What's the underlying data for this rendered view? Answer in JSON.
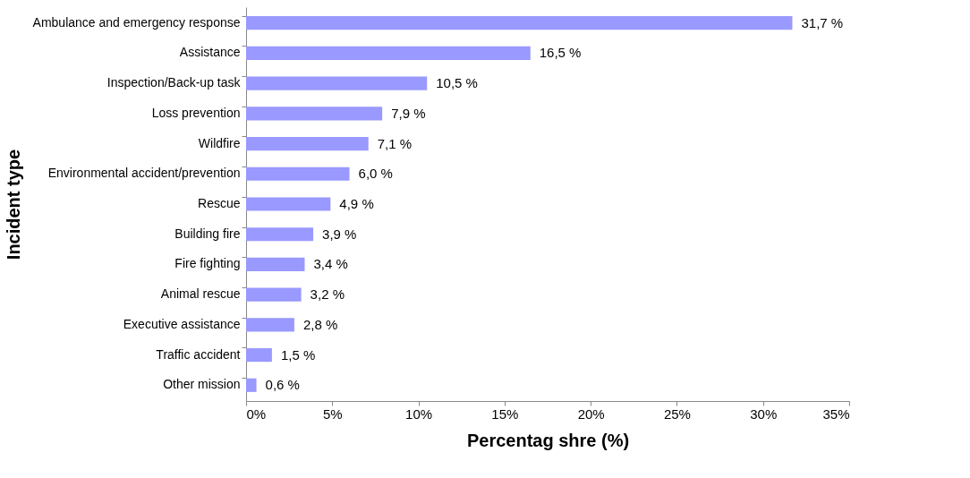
{
  "chart_data": {
    "type": "bar",
    "orientation": "horizontal",
    "xlabel": "Percentag shre (%)",
    "ylabel": "Incident type",
    "categories": [
      "Ambulance and emergency response",
      "Assistance",
      "Inspection/Back-up task",
      "Loss prevention",
      "Wildfire",
      "Environmental accident/prevention",
      "Rescue",
      "Building fire",
      "Fire fighting",
      "Animal rescue",
      "Executive assistance",
      "Traffic accident",
      "Other mission"
    ],
    "values": [
      31.7,
      16.5,
      10.5,
      7.9,
      7.1,
      6.0,
      4.9,
      3.9,
      3.4,
      3.2,
      2.8,
      1.5,
      0.6
    ],
    "value_labels": [
      "31,7 %",
      "16,5 %",
      "10,5 %",
      "7,9 %",
      "7,1 %",
      "6,0 %",
      "4,9 %",
      "3,9 %",
      "3,4 %",
      "3,2 %",
      "2,8 %",
      "1,5 %",
      "0,6 %"
    ],
    "color": "#9999ff",
    "xlim": [
      0,
      35
    ],
    "xticks": [
      {
        "value": 0,
        "label": "0%"
      },
      {
        "value": 5,
        "label": "5%"
      },
      {
        "value": 10,
        "label": "10%"
      },
      {
        "value": 15,
        "label": "15%"
      },
      {
        "value": 20,
        "label": "20%"
      },
      {
        "value": 25,
        "label": "25%"
      },
      {
        "value": 30,
        "label": "30%"
      },
      {
        "value": 35,
        "label": "35%"
      }
    ],
    "grid": false
  }
}
